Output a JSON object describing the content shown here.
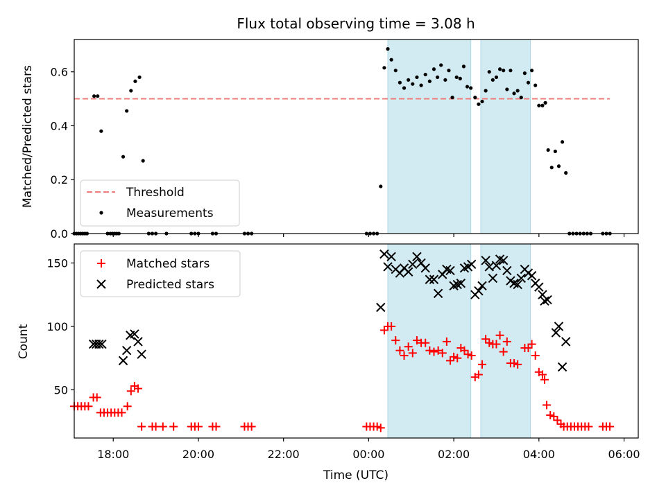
{
  "figure": {
    "title": "Flux total observing time = 3.08 h",
    "xlabel": "Time (UTC)"
  },
  "colors": {
    "threshold": "#f07b7b",
    "measurement": "#000000",
    "matched": "#ff0000",
    "predicted": "#000000",
    "window_fill": "#add8e6"
  },
  "chart_data": [
    {
      "type": "scatter",
      "ylabel": "Matched/Predicted stars",
      "ylim": [
        0,
        0.72
      ],
      "xlim": [
        "17:05",
        "06:20"
      ],
      "x_ticks": [
        "18:00",
        "20:00",
        "22:00",
        "00:00",
        "02:00",
        "04:00",
        "06:00"
      ],
      "y_ticks": [
        "0.0",
        "0.2",
        "0.4",
        "0.6"
      ],
      "legend": {
        "placement": "lower-left",
        "entries": [
          "Threshold",
          "Measurements"
        ]
      },
      "threshold": {
        "name": "Threshold",
        "value": 0.5,
        "x_range": [
          "17:05",
          "05:40"
        ]
      },
      "observing_windows": [
        [
          "00:27",
          "02:24"
        ],
        [
          "02:38",
          "03:48"
        ]
      ],
      "series": [
        {
          "name": "Measurements",
          "points": [
            [
              "17:05",
              0
            ],
            [
              "17:08",
              0
            ],
            [
              "17:11",
              0
            ],
            [
              "17:14",
              0
            ],
            [
              "17:17",
              0
            ],
            [
              "17:20",
              0
            ],
            [
              "17:23",
              0
            ],
            [
              "17:33",
              0.51
            ],
            [
              "17:38",
              0.51
            ],
            [
              "17:43",
              0.38
            ],
            [
              "17:52",
              0
            ],
            [
              "17:56",
              0
            ],
            [
              "17:59",
              0
            ],
            [
              "18:02",
              0
            ],
            [
              "18:05",
              0
            ],
            [
              "18:08",
              0
            ],
            [
              "18:14",
              0.285
            ],
            [
              "18:19",
              0.455
            ],
            [
              "18:25",
              0.53
            ],
            [
              "18:31",
              0.565
            ],
            [
              "18:37",
              0.58
            ],
            [
              "18:42",
              0.27
            ],
            [
              "18:50",
              0
            ],
            [
              "18:55",
              0
            ],
            [
              "19:00",
              0
            ],
            [
              "19:15",
              0
            ],
            [
              "19:50",
              0
            ],
            [
              "19:55",
              0
            ],
            [
              "20:00",
              0
            ],
            [
              "20:20",
              0
            ],
            [
              "20:25",
              0
            ],
            [
              "21:05",
              0
            ],
            [
              "21:10",
              0
            ],
            [
              "21:15",
              0
            ],
            [
              "23:57",
              0
            ],
            [
              "00:02",
              0
            ],
            [
              "00:07",
              0
            ],
            [
              "00:12",
              0
            ],
            [
              "00:17",
              0.175
            ],
            [
              "00:22",
              0.615
            ],
            [
              "00:27",
              0.685
            ],
            [
              "00:32",
              0.645
            ],
            [
              "00:38",
              0.605
            ],
            [
              "00:44",
              0.56
            ],
            [
              "00:50",
              0.54
            ],
            [
              "00:56",
              0.57
            ],
            [
              "01:02",
              0.555
            ],
            [
              "01:08",
              0.58
            ],
            [
              "01:14",
              0.55
            ],
            [
              "01:20",
              0.59
            ],
            [
              "01:26",
              0.565
            ],
            [
              "01:32",
              0.61
            ],
            [
              "01:37",
              0.58
            ],
            [
              "01:42",
              0.625
            ],
            [
              "01:48",
              0.57
            ],
            [
              "01:53",
              0.605
            ],
            [
              "01:58",
              0.505
            ],
            [
              "02:04",
              0.58
            ],
            [
              "02:09",
              0.575
            ],
            [
              "02:14",
              0.62
            ],
            [
              "02:19",
              0.545
            ],
            [
              "02:24",
              0.54
            ],
            [
              "02:30",
              0.505
            ],
            [
              "02:35",
              0.48
            ],
            [
              "02:40",
              0.49
            ],
            [
              "02:45",
              0.53
            ],
            [
              "02:50",
              0.6
            ],
            [
              "02:55",
              0.57
            ],
            [
              "03:00",
              0.58
            ],
            [
              "03:05",
              0.61
            ],
            [
              "03:10",
              0.605
            ],
            [
              "03:15",
              0.535
            ],
            [
              "03:20",
              0.605
            ],
            [
              "03:25",
              0.52
            ],
            [
              "03:30",
              0.53
            ],
            [
              "03:35",
              0.505
            ],
            [
              "03:40",
              0.595
            ],
            [
              "03:45",
              0.56
            ],
            [
              "03:50",
              0.605
            ],
            [
              "03:55",
              0.55
            ],
            [
              "04:00",
              0.475
            ],
            [
              "04:05",
              0.475
            ],
            [
              "04:09",
              0.485
            ],
            [
              "04:13",
              0.31
            ],
            [
              "04:18",
              0.245
            ],
            [
              "04:23",
              0.305
            ],
            [
              "04:28",
              0.25
            ],
            [
              "04:33",
              0.34
            ],
            [
              "04:38",
              0.225
            ],
            [
              "04:43",
              0
            ],
            [
              "04:48",
              0
            ],
            [
              "04:53",
              0
            ],
            [
              "04:58",
              0
            ],
            [
              "05:03",
              0
            ],
            [
              "05:08",
              0
            ],
            [
              "05:13",
              0
            ],
            [
              "05:30",
              0
            ],
            [
              "05:35",
              0
            ],
            [
              "05:40",
              0
            ]
          ]
        }
      ]
    },
    {
      "type": "scatter",
      "ylabel": "Count",
      "ylim": [
        12,
        165
      ],
      "xlim": [
        "17:05",
        "06:20"
      ],
      "x_ticks": [
        "18:00",
        "20:00",
        "22:00",
        "00:00",
        "02:00",
        "04:00",
        "06:00"
      ],
      "y_ticks": [
        "50",
        "100",
        "150"
      ],
      "legend": {
        "placement": "upper-left",
        "entries": [
          "Matched stars",
          "Predicted stars"
        ]
      },
      "observing_windows": [
        [
          "00:27",
          "02:24"
        ],
        [
          "02:38",
          "03:48"
        ]
      ],
      "series": [
        {
          "name": "Matched stars",
          "marker": "+",
          "points": [
            [
              "17:05",
              37
            ],
            [
              "17:10",
              37
            ],
            [
              "17:15",
              37
            ],
            [
              "17:20",
              37
            ],
            [
              "17:25",
              37
            ],
            [
              "17:32",
              44
            ],
            [
              "17:37",
              44
            ],
            [
              "17:42",
              32
            ],
            [
              "17:47",
              32
            ],
            [
              "17:52",
              32
            ],
            [
              "17:57",
              32
            ],
            [
              "18:02",
              32
            ],
            [
              "18:07",
              32
            ],
            [
              "18:12",
              32
            ],
            [
              "18:20",
              37
            ],
            [
              "18:25",
              49
            ],
            [
              "18:30",
              53
            ],
            [
              "18:35",
              51
            ],
            [
              "18:40",
              21
            ],
            [
              "18:55",
              21
            ],
            [
              "19:00",
              21
            ],
            [
              "19:10",
              21
            ],
            [
              "19:25",
              21
            ],
            [
              "19:50",
              21
            ],
            [
              "19:55",
              21
            ],
            [
              "20:00",
              21
            ],
            [
              "20:20",
              21
            ],
            [
              "20:25",
              21
            ],
            [
              "21:05",
              21
            ],
            [
              "21:10",
              21
            ],
            [
              "21:15",
              21
            ],
            [
              "23:57",
              21
            ],
            [
              "00:02",
              21
            ],
            [
              "00:07",
              21
            ],
            [
              "00:12",
              21
            ],
            [
              "00:17",
              20
            ],
            [
              "00:22",
              97
            ],
            [
              "00:27",
              100
            ],
            [
              "00:32",
              100
            ],
            [
              "00:38",
              89
            ],
            [
              "00:44",
              81
            ],
            [
              "00:50",
              77
            ],
            [
              "00:56",
              84
            ],
            [
              "01:02",
              79
            ],
            [
              "01:08",
              89
            ],
            [
              "01:14",
              87
            ],
            [
              "01:20",
              87
            ],
            [
              "01:26",
              81
            ],
            [
              "01:32",
              80
            ],
            [
              "01:38",
              81
            ],
            [
              "01:44",
              79
            ],
            [
              "01:50",
              88
            ],
            [
              "01:55",
              73
            ],
            [
              "02:00",
              76
            ],
            [
              "02:05",
              75
            ],
            [
              "02:10",
              83
            ],
            [
              "02:15",
              81
            ],
            [
              "02:20",
              78
            ],
            [
              "02:25",
              77
            ],
            [
              "02:30",
              60
            ],
            [
              "02:35",
              62
            ],
            [
              "02:40",
              70
            ],
            [
              "02:45",
              90
            ],
            [
              "02:50",
              87
            ],
            [
              "02:55",
              86
            ],
            [
              "03:00",
              86
            ],
            [
              "03:05",
              93
            ],
            [
              "03:10",
              80
            ],
            [
              "03:15",
              88
            ],
            [
              "03:20",
              71
            ],
            [
              "03:25",
              71
            ],
            [
              "03:30",
              70
            ],
            [
              "03:40",
              83
            ],
            [
              "03:45",
              83
            ],
            [
              "03:50",
              86
            ],
            [
              "03:55",
              77
            ],
            [
              "04:00",
              64
            ],
            [
              "04:05",
              62
            ],
            [
              "04:08",
              58
            ],
            [
              "04:11",
              38
            ],
            [
              "04:16",
              30
            ],
            [
              "04:21",
              29
            ],
            [
              "04:26",
              26
            ],
            [
              "04:31",
              23
            ],
            [
              "04:35",
              21
            ],
            [
              "04:40",
              21
            ],
            [
              "04:45",
              21
            ],
            [
              "04:50",
              21
            ],
            [
              "04:55",
              21
            ],
            [
              "05:00",
              21
            ],
            [
              "05:05",
              21
            ],
            [
              "05:10",
              21
            ],
            [
              "05:30",
              21
            ],
            [
              "05:35",
              21
            ],
            [
              "05:40",
              21
            ]
          ]
        },
        {
          "name": "Predicted stars",
          "marker": "x",
          "points": [
            [
              "17:32",
              86
            ],
            [
              "17:36",
              86
            ],
            [
              "17:40",
              86
            ],
            [
              "17:44",
              86
            ],
            [
              "18:14",
              73
            ],
            [
              "18:19",
              81
            ],
            [
              "18:24",
              93
            ],
            [
              "18:30",
              94
            ],
            [
              "18:35",
              88
            ],
            [
              "18:40",
              78
            ],
            [
              "00:17",
              115
            ],
            [
              "00:22",
              157
            ],
            [
              "00:27",
              147
            ],
            [
              "00:32",
              155
            ],
            [
              "00:38",
              145
            ],
            [
              "00:44",
              142
            ],
            [
              "00:50",
              146
            ],
            [
              "00:56",
              143
            ],
            [
              "01:02",
              149
            ],
            [
              "01:08",
              155
            ],
            [
              "01:14",
              150
            ],
            [
              "01:20",
              146
            ],
            [
              "01:26",
              137
            ],
            [
              "01:32",
              137
            ],
            [
              "01:38",
              126
            ],
            [
              "01:44",
              141
            ],
            [
              "01:50",
              145
            ],
            [
              "01:55",
              144
            ],
            [
              "02:00",
              132
            ],
            [
              "02:05",
              133
            ],
            [
              "02:10",
              134
            ],
            [
              "02:15",
              146
            ],
            [
              "02:20",
              147
            ],
            [
              "02:25",
              149
            ],
            [
              "02:30",
              125
            ],
            [
              "02:35",
              128
            ],
            [
              "02:40",
              132
            ],
            [
              "02:45",
              152
            ],
            [
              "02:50",
              147
            ],
            [
              "02:55",
              138
            ],
            [
              "03:00",
              148
            ],
            [
              "03:05",
              153
            ],
            [
              "03:10",
              152
            ],
            [
              "03:15",
              144
            ],
            [
              "03:20",
              136
            ],
            [
              "03:25",
              134
            ],
            [
              "03:30",
              133
            ],
            [
              "03:35",
              138
            ],
            [
              "03:40",
              145
            ],
            [
              "03:45",
              142
            ],
            [
              "03:50",
              140
            ],
            [
              "03:55",
              134
            ],
            [
              "04:00",
              131
            ],
            [
              "04:05",
              125
            ],
            [
              "04:08",
              120
            ],
            [
              "04:12",
              121
            ],
            [
              "04:24",
              95
            ],
            [
              "04:28",
              100
            ],
            [
              "04:33",
              68
            ],
            [
              "04:38",
              88
            ]
          ]
        }
      ]
    }
  ]
}
